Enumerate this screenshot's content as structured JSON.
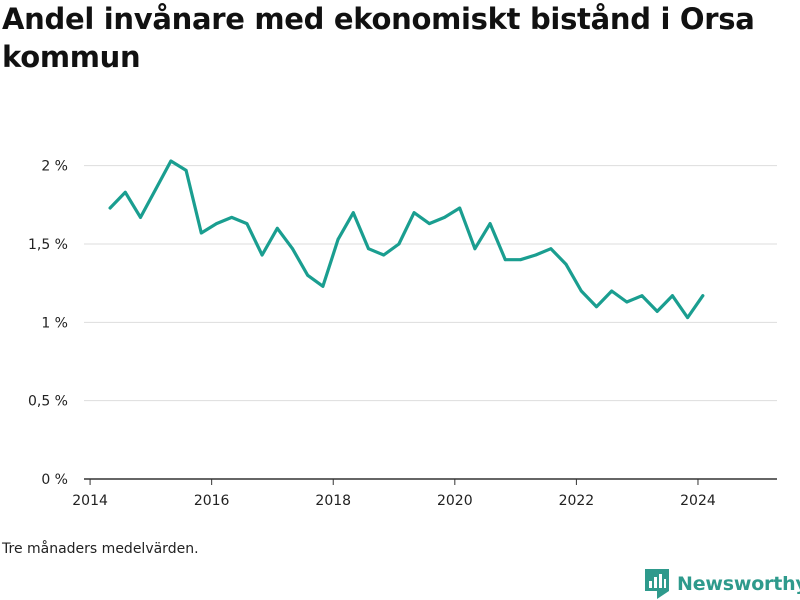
{
  "header": {
    "title": "Andel invånare med ekonomiskt bistånd i Orsa kommun"
  },
  "footer": {
    "note": "Tre månaders medelvärden.",
    "brand": "Newsworthy",
    "brand_icon": "bar-chart-logo-icon"
  },
  "colors": {
    "line": "#1a9e90",
    "grid": "#dddddd",
    "axis": "#333333",
    "brand": "#2e9a8c"
  },
  "chart_data": {
    "type": "line",
    "x_ticks": [
      2014,
      2016,
      2018,
      2020,
      2022,
      2024
    ],
    "x_tick_labels": [
      "2014",
      "2016",
      "2018",
      "2020",
      "2022",
      "2024"
    ],
    "y_ticks": [
      0,
      0.5,
      1,
      1.5,
      2
    ],
    "y_tick_labels": [
      "0 %",
      "0,5 %",
      "1 %",
      "1,5 %",
      "2 %"
    ],
    "xlim": [
      2013.9,
      2025.3
    ],
    "ylim": [
      0,
      2.1
    ],
    "grid": true,
    "legend": "none",
    "series": [
      {
        "x": [
          2014.33,
          2014.58,
          2014.83,
          2015.08,
          2015.33,
          2015.58,
          2015.83,
          2016.08,
          2016.33,
          2016.58,
          2016.83,
          2017.08,
          2017.33,
          2017.58,
          2017.83,
          2018.08,
          2018.33,
          2018.58,
          2018.83,
          2019.08,
          2019.33,
          2019.58,
          2019.83,
          2020.08,
          2020.33,
          2020.58,
          2020.83,
          2021.08,
          2021.33,
          2021.58,
          2021.83,
          2022.08,
          2022.33,
          2022.58,
          2022.83,
          2023.08,
          2023.33,
          2023.58,
          2023.83,
          2024.08
        ],
        "values": [
          1.73,
          1.83,
          1.67,
          1.85,
          2.03,
          1.97,
          1.57,
          1.63,
          1.67,
          1.63,
          1.43,
          1.6,
          1.47,
          1.3,
          1.23,
          1.53,
          1.7,
          1.47,
          1.43,
          1.5,
          1.7,
          1.63,
          1.67,
          1.73,
          1.47,
          1.63,
          1.4,
          1.4,
          1.43,
          1.47,
          1.37,
          1.2,
          1.1,
          1.2,
          1.13,
          1.17,
          1.07,
          1.17,
          1.03,
          1.17
        ]
      }
    ]
  }
}
